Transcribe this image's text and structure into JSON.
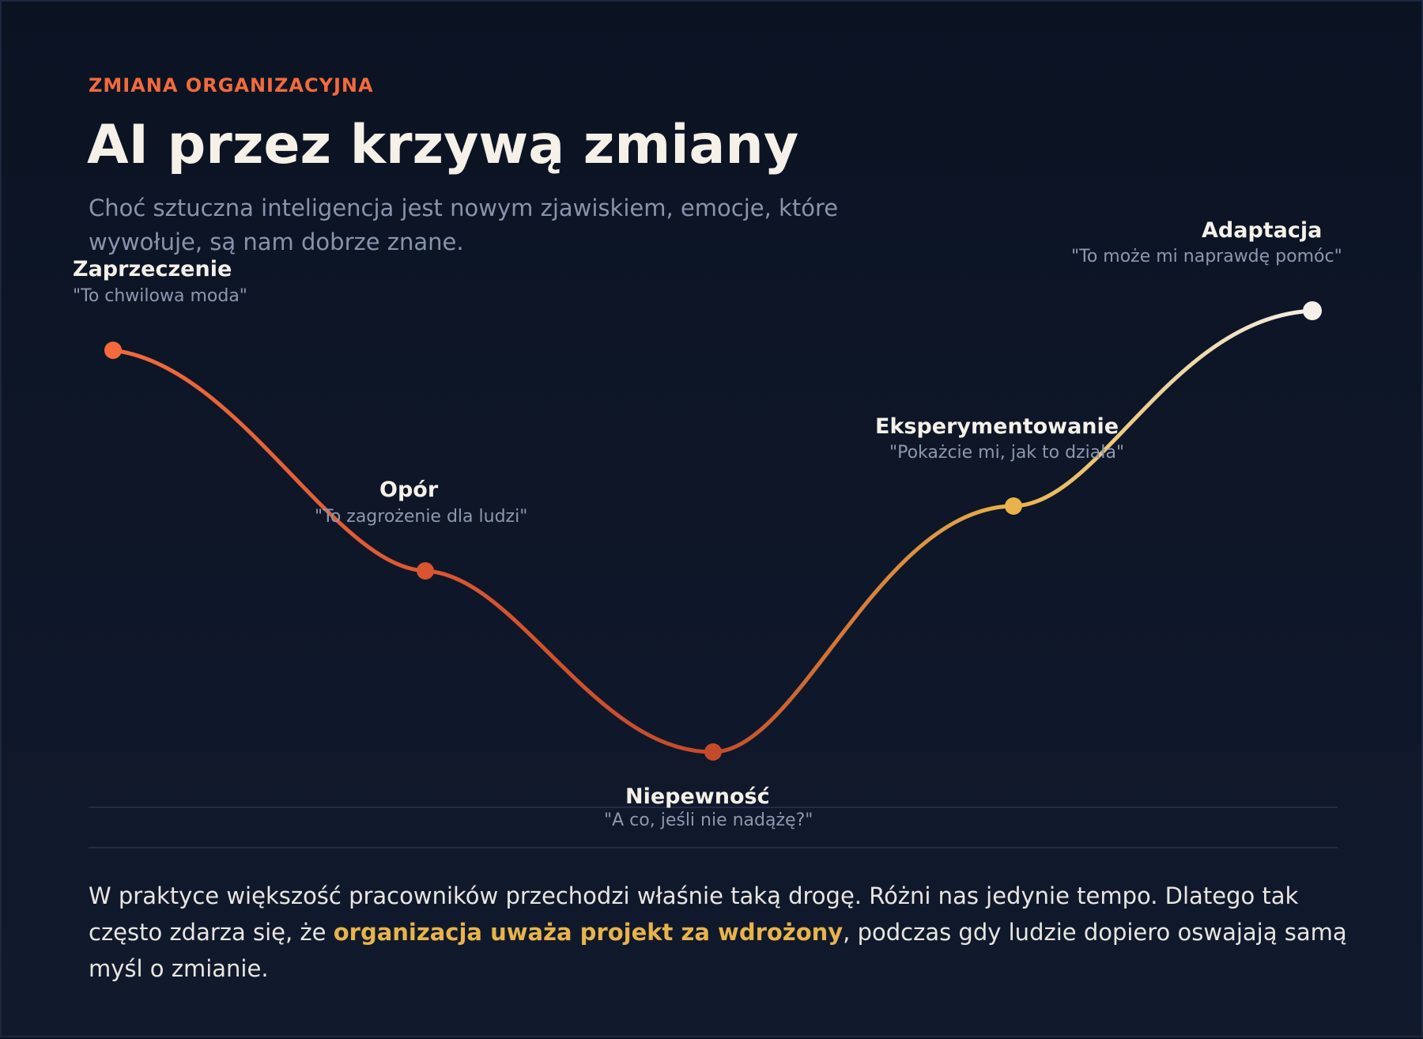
{
  "header": {
    "eyebrow": "ZMIANA ORGANIZACYJNA",
    "title": "AI przez krzywą zmiany",
    "subtitle": "Choć sztuczna inteligencja jest nowym zjawiskiem, emocje, które wywołuje, są nam dobrze znane."
  },
  "stages": [
    {
      "name": "Zaprzeczenie",
      "quote": "\"To chwilowa moda\"",
      "color": "#f26a3d"
    },
    {
      "name": "Opór",
      "quote": "\"To zagrożenie dla ludzi\"",
      "color": "#d95430"
    },
    {
      "name": "Niepewność",
      "quote": "\"A co, jeśli nie nadążę?\"",
      "color": "#c54a2a"
    },
    {
      "name": "Eksperymentowanie",
      "quote": "\"Pokażcie mi, jak to działa\"",
      "color": "#e8b34a"
    },
    {
      "name": "Adaptacja",
      "quote": "\"To może mi naprawdę pomóc\"",
      "color": "#f5f0e8"
    }
  ],
  "footer": {
    "text_before": "W praktyce większość pracowników przechodzi właśnie taką drogę. Różni nas jedynie tempo. Dlatego tak często zdarza się, że ",
    "highlight": "organizacja uważa projekt za wdrożony",
    "text_after": ", podczas gdy ludzie dopiero oswajają samą myśl o zmianie."
  },
  "colors": {
    "accent": "#f26a3d",
    "highlight": "#e8b34a",
    "background": "#0c1424",
    "text": "#f5f0e8",
    "muted": "#8894ad"
  }
}
